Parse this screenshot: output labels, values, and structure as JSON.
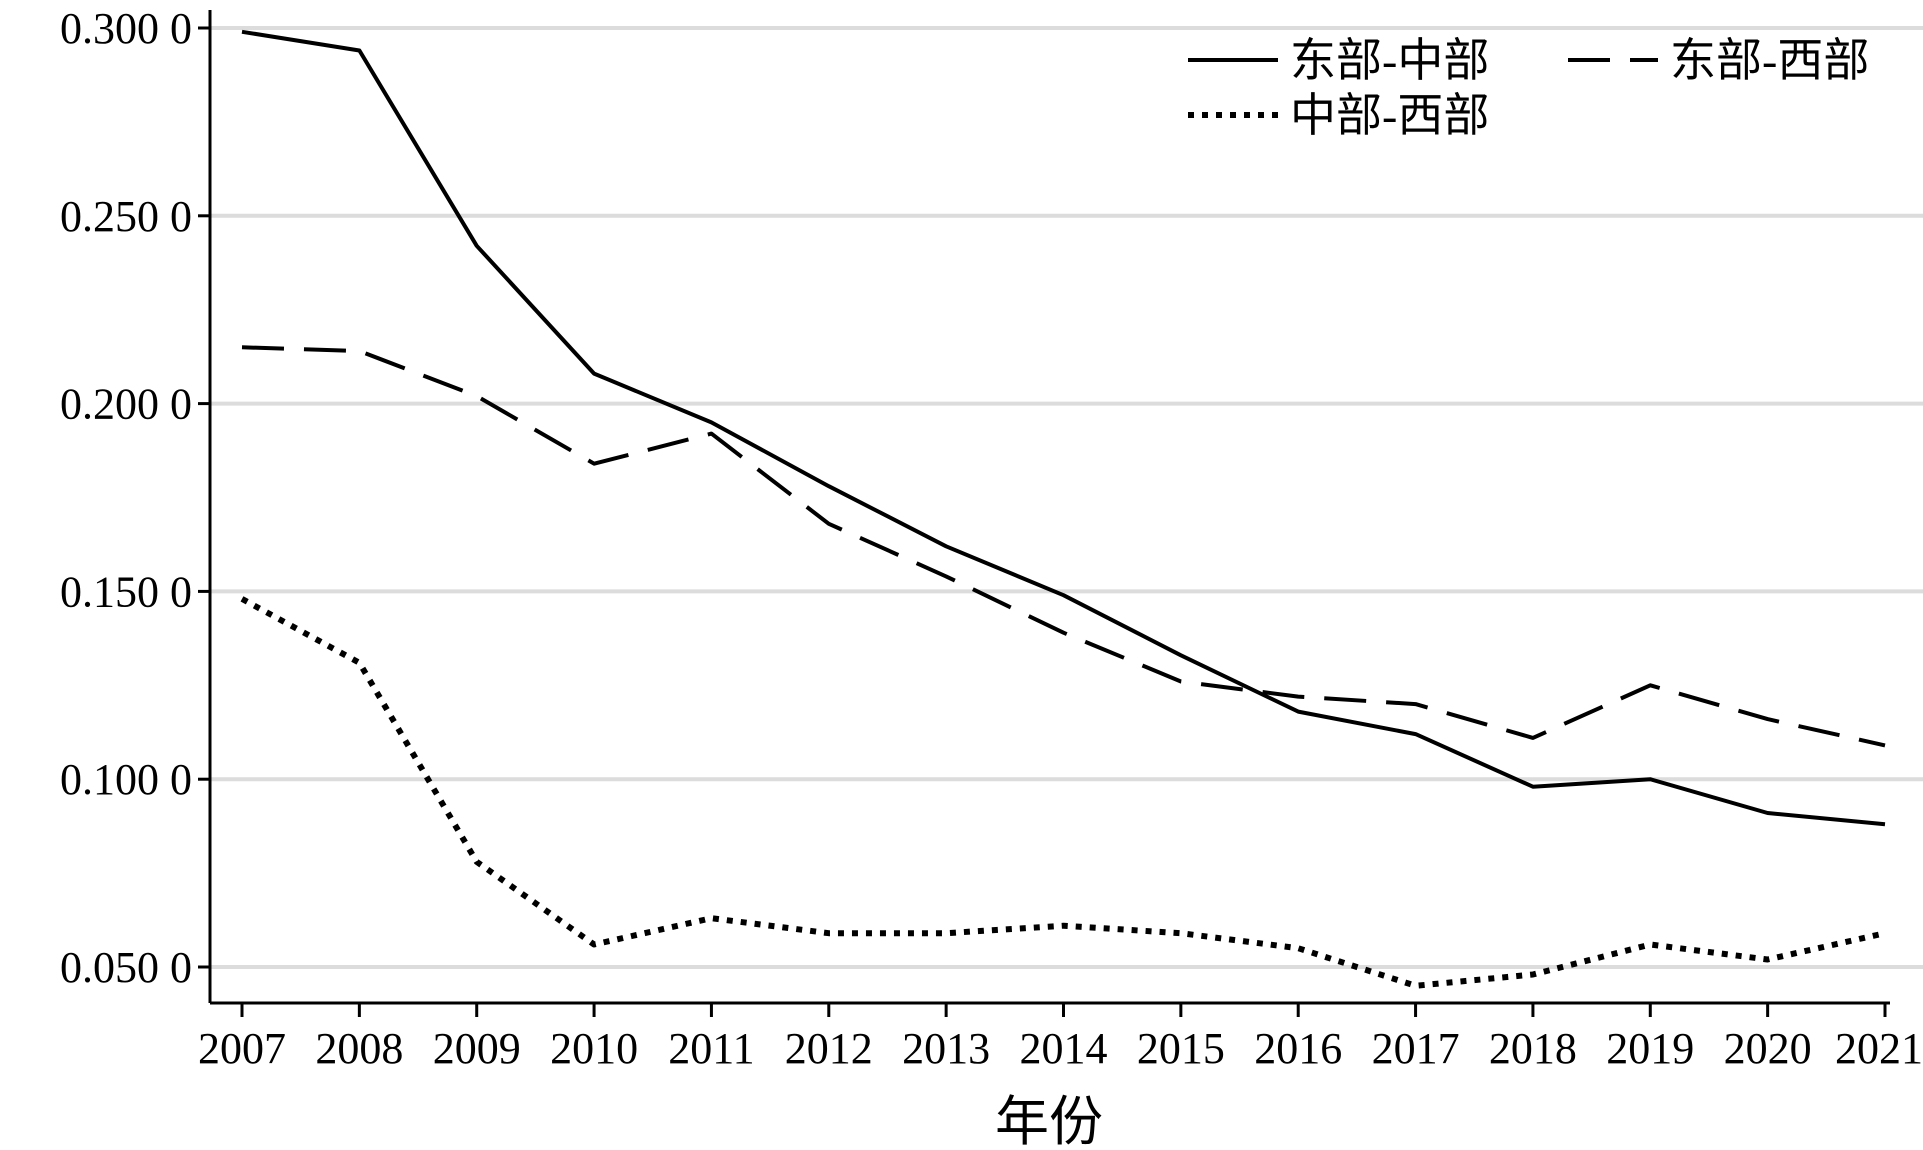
{
  "chart_data": {
    "type": "line",
    "title": "",
    "xlabel": "年份",
    "ylabel": "",
    "x": [
      "2007",
      "2008",
      "2009",
      "2010",
      "2011",
      "2012",
      "2013",
      "2014",
      "2015",
      "2016",
      "2017",
      "2018",
      "2019",
      "2020",
      "2021"
    ],
    "y_ticks": [
      "0.050 0",
      "0.100 0",
      "0.150 0",
      "0.200 0",
      "0.250 0",
      "0.300 0"
    ],
    "ylim": [
      0.04,
      0.305
    ],
    "grid": true,
    "legend_position": "top-right",
    "series": [
      {
        "name": "东部-中部",
        "style": "solid",
        "color": "#000000",
        "values": [
          0.299,
          0.294,
          0.242,
          0.208,
          0.195,
          0.178,
          0.162,
          0.149,
          0.133,
          0.118,
          0.112,
          0.098,
          0.1,
          0.091,
          0.088
        ]
      },
      {
        "name": "东部-西部",
        "style": "dashed",
        "color": "#000000",
        "values": [
          0.215,
          0.214,
          0.202,
          0.184,
          0.192,
          0.168,
          0.154,
          0.139,
          0.126,
          0.122,
          0.12,
          0.111,
          0.125,
          0.116,
          0.109
        ]
      },
      {
        "name": "中部-西部",
        "style": "dotted",
        "color": "#000000",
        "values": [
          0.148,
          0.131,
          0.078,
          0.056,
          0.063,
          0.059,
          0.059,
          0.061,
          0.059,
          0.055,
          0.045,
          0.048,
          0.056,
          0.052,
          0.059
        ]
      }
    ]
  }
}
